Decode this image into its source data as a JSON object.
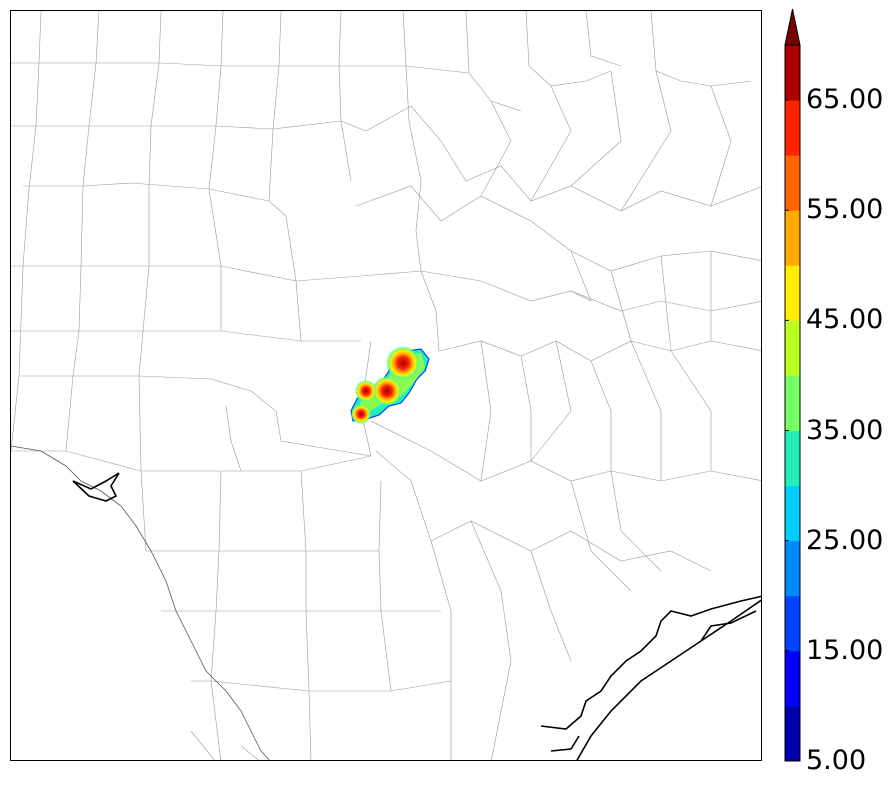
{
  "colorbar": {
    "tick_labels": [
      "5.00",
      "15.00",
      "25.00",
      "35.00",
      "45.00",
      "55.00",
      "65.00"
    ],
    "levels": [
      5,
      10,
      15,
      20,
      25,
      30,
      35,
      40,
      45,
      50,
      55,
      60,
      65,
      70
    ],
    "colors": [
      "#0000aa",
      "#0000ff",
      "#0044ff",
      "#0088ff",
      "#00ccff",
      "#22eebb",
      "#77ff66",
      "#bbff22",
      "#ffee00",
      "#ffaa00",
      "#ff6600",
      "#ff2200",
      "#aa0000"
    ],
    "extend": "max",
    "extend_color": "#770000"
  },
  "colors": {
    "county_lines": "#999999",
    "coastline": "#000000",
    "background": "#ffffff"
  }
}
